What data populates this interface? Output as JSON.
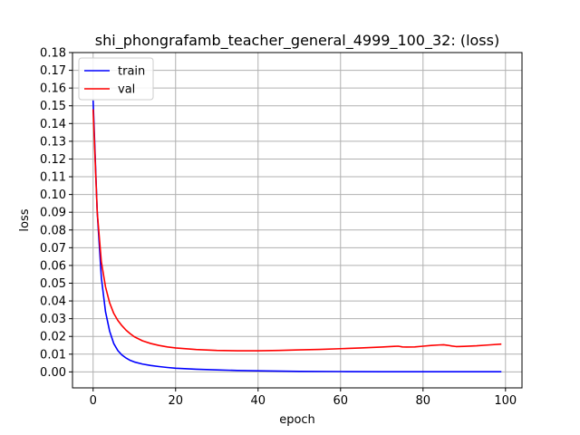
{
  "chart_data": {
    "type": "line",
    "title": "shi_phongrafamb_teacher_general_4999_100_32: (loss)",
    "xlabel": "epoch",
    "ylabel": "loss",
    "xlim": [
      -5,
      104
    ],
    "ylim": [
      -0.009,
      0.18
    ],
    "xticks": [
      0,
      20,
      40,
      60,
      80,
      100
    ],
    "yticks": [
      0.0,
      0.01,
      0.02,
      0.03,
      0.04,
      0.05,
      0.06,
      0.07,
      0.08,
      0.09,
      0.1,
      0.11,
      0.12,
      0.13,
      0.14,
      0.15,
      0.16,
      0.17,
      0.18
    ],
    "grid": true,
    "legend_position": "top-left",
    "series": [
      {
        "name": "train",
        "color": "#0000ff",
        "x": [
          0,
          1,
          2,
          3,
          4,
          5,
          6,
          7,
          8,
          9,
          10,
          12,
          14,
          16,
          18,
          20,
          25,
          30,
          35,
          40,
          50,
          60,
          70,
          80,
          90,
          99
        ],
        "values": [
          0.153,
          0.09,
          0.053,
          0.034,
          0.023,
          0.016,
          0.012,
          0.0095,
          0.0078,
          0.0065,
          0.0056,
          0.0044,
          0.0036,
          0.003,
          0.0025,
          0.0021,
          0.0015,
          0.0011,
          0.0008,
          0.0006,
          0.0003,
          0.0002,
          0.0001,
          0.0001,
          0.0001,
          0.0001
        ]
      },
      {
        "name": "val",
        "color": "#ff0000",
        "x": [
          0,
          1,
          2,
          3,
          4,
          5,
          6,
          7,
          8,
          9,
          10,
          12,
          14,
          16,
          18,
          20,
          25,
          30,
          35,
          40,
          45,
          50,
          55,
          60,
          65,
          70,
          73,
          74,
          75,
          76,
          78,
          80,
          82,
          84,
          85,
          86,
          87,
          88,
          90,
          93,
          96,
          99
        ],
        "values": [
          0.148,
          0.09,
          0.062,
          0.048,
          0.039,
          0.033,
          0.029,
          0.026,
          0.0235,
          0.0215,
          0.0198,
          0.0175,
          0.016,
          0.0149,
          0.0141,
          0.0135,
          0.0126,
          0.0121,
          0.0119,
          0.0119,
          0.0121,
          0.0124,
          0.0127,
          0.0131,
          0.0135,
          0.014,
          0.0144,
          0.0145,
          0.0141,
          0.014,
          0.0141,
          0.0145,
          0.0149,
          0.0152,
          0.0153,
          0.015,
          0.0146,
          0.0143,
          0.0144,
          0.0147,
          0.0152,
          0.0157
        ]
      }
    ]
  }
}
